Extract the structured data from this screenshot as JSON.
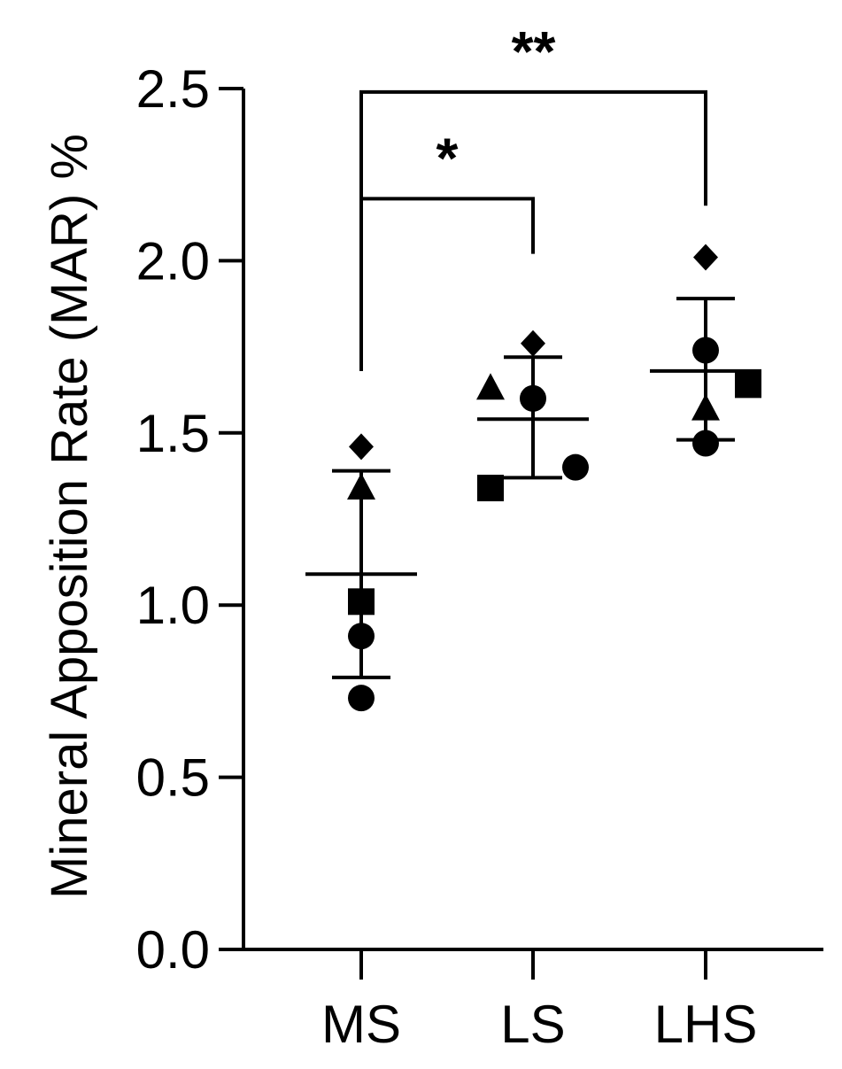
{
  "chart_data": {
    "type": "scatter",
    "title": "",
    "ylabel": "Mineral Apposition Rate (MAR) %",
    "xlabel": "",
    "ylim": [
      0,
      2.5
    ],
    "yticks": [
      "0.0",
      "0.5",
      "1.0",
      "1.5",
      "2.0",
      "2.5"
    ],
    "categories": [
      "MS",
      "LS",
      "LHS"
    ],
    "groups": [
      {
        "category": "MS",
        "mean": 1.09,
        "sd_low": 0.79,
        "sd_high": 1.39,
        "points": [
          {
            "marker": "diamond",
            "value": 1.46,
            "offset": 0
          },
          {
            "marker": "triangle",
            "value": 1.34,
            "offset": 0
          },
          {
            "marker": "square",
            "value": 1.01,
            "offset": 0
          },
          {
            "marker": "circle",
            "value": 0.91,
            "offset": 0
          },
          {
            "marker": "circle",
            "value": 0.73,
            "offset": 0
          }
        ]
      },
      {
        "category": "LS",
        "mean": 1.54,
        "sd_low": 1.37,
        "sd_high": 1.72,
        "points": [
          {
            "marker": "diamond",
            "value": 1.76,
            "offset": 0
          },
          {
            "marker": "triangle",
            "value": 1.63,
            "offset": -1
          },
          {
            "marker": "circle",
            "value": 1.6,
            "offset": 0
          },
          {
            "marker": "circle",
            "value": 1.4,
            "offset": 1
          },
          {
            "marker": "square",
            "value": 1.34,
            "offset": -1
          }
        ]
      },
      {
        "category": "LHS",
        "mean": 1.68,
        "sd_low": 1.48,
        "sd_high": 1.89,
        "points": [
          {
            "marker": "diamond",
            "value": 2.01,
            "offset": 0
          },
          {
            "marker": "circle",
            "value": 1.74,
            "offset": 0
          },
          {
            "marker": "square",
            "value": 1.64,
            "offset": 1
          },
          {
            "marker": "triangle",
            "value": 1.57,
            "offset": 0
          },
          {
            "marker": "circle",
            "value": 1.47,
            "offset": 0
          }
        ]
      }
    ],
    "comparisons": [
      {
        "from": "MS",
        "to": "LS",
        "label": "*",
        "level": 2.18
      },
      {
        "from": "MS",
        "to": "LHS",
        "label": "**",
        "level": 2.49
      }
    ],
    "colors": {
      "points": "#000000",
      "axes": "#000000"
    }
  }
}
